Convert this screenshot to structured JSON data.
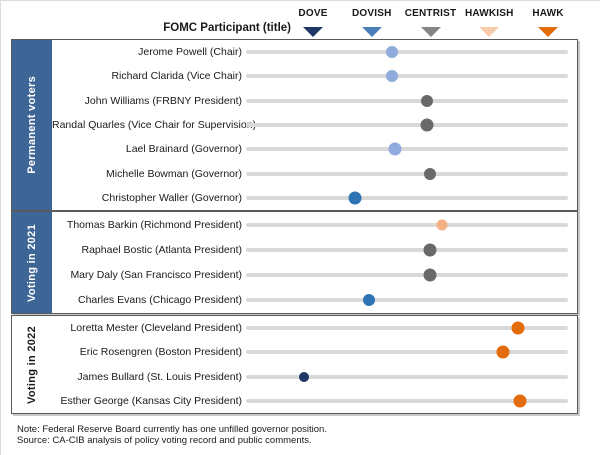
{
  "header": {
    "participant_column_label": "FOMC Participant (title)"
  },
  "footer": {
    "note": "Note: Federal Reserve Board currently has one unfilled  governor position.",
    "source": "Source: CA-CIB analysis of policy voting record and public comments."
  },
  "colors": {
    "track": "#d9d9d9",
    "box_border": "#595959",
    "sidebar_blue": "#3d6596",
    "dove": "#203864",
    "dovish": "#4a7ebb",
    "centrist": "#858585",
    "hawkish": "#f8cbad",
    "hawk": "#e36c0a"
  },
  "chart_data": {
    "type": "scatter",
    "title": "FOMC Participant (title)",
    "x_axis": {
      "kind": "category",
      "categories": [
        "DOVE",
        "DOVISH",
        "CENTRIST",
        "HAWKISH",
        "HAWK"
      ],
      "category_colors": [
        "#203864",
        "#4a7ebb",
        "#858585",
        "#f8cbad",
        "#e36c0a"
      ],
      "range": [
        1,
        5
      ],
      "position": "top"
    },
    "grid": false,
    "legend_position": "top",
    "groups": [
      {
        "label": "Permanent voters",
        "sidebar_bg": "#3d6596",
        "sidebar_text": "#ffffff",
        "points": [
          {
            "name": "Jerome Powell (Chair)",
            "value": 2.35,
            "color": "#8faadc",
            "size": 12
          },
          {
            "name": "Richard Clarida (Vice Chair)",
            "value": 2.35,
            "color": "#8faadc",
            "size": 12
          },
          {
            "name": "John Williams (FRBNY President)",
            "value": 2.95,
            "color": "#696969",
            "size": 12
          },
          {
            "name": "Randal Quarles (Vice Chair for Supervision)",
            "value": 2.95,
            "color": "#696969",
            "size": 13
          },
          {
            "name": "Lael Brainard (Governor)",
            "value": 2.4,
            "color": "#8faadc",
            "size": 13
          },
          {
            "name": "Michelle Bowman (Governor)",
            "value": 3.0,
            "color": "#696969",
            "size": 12
          },
          {
            "name": "Christopher Waller (Governor)",
            "value": 1.73,
            "color": "#2e74b5",
            "size": 13
          }
        ]
      },
      {
        "label": "Voting in 2021",
        "sidebar_bg": "#3d6596",
        "sidebar_text": "#ffffff",
        "points": [
          {
            "name": "Thomas Barkin (Richmond President)",
            "value": 3.2,
            "color": "#f4b183",
            "size": 11
          },
          {
            "name": "Raphael Bostic (Atlanta President)",
            "value": 3.0,
            "color": "#696969",
            "size": 13
          },
          {
            "name": "Mary Daly (San Francisco President)",
            "value": 3.0,
            "color": "#696969",
            "size": 13
          },
          {
            "name": "Charles Evans (Chicago President)",
            "value": 1.97,
            "color": "#2e74b5",
            "size": 12
          }
        ]
      },
      {
        "label": "Voting in 2022",
        "sidebar_bg": "#ffffff",
        "sidebar_text": "#1a1a1a",
        "points": [
          {
            "name": "Loretta Mester (Cleveland President)",
            "value": 4.5,
            "color": "#e36c0a",
            "size": 13
          },
          {
            "name": "Eric Rosengren (Boston President)",
            "value": 4.25,
            "color": "#e36c0a",
            "size": 13
          },
          {
            "name": "James Bullard (St. Louis President)",
            "value": 0.85,
            "color": "#203864",
            "size": 10
          },
          {
            "name": "Esther George (Kansas City President)",
            "value": 4.53,
            "color": "#e36c0a",
            "size": 13
          }
        ]
      }
    ],
    "notes": [
      "Note: Federal Reserve Board currently has one unfilled  governor position.",
      "Source: CA-CIB analysis of policy voting record and public comments."
    ]
  }
}
